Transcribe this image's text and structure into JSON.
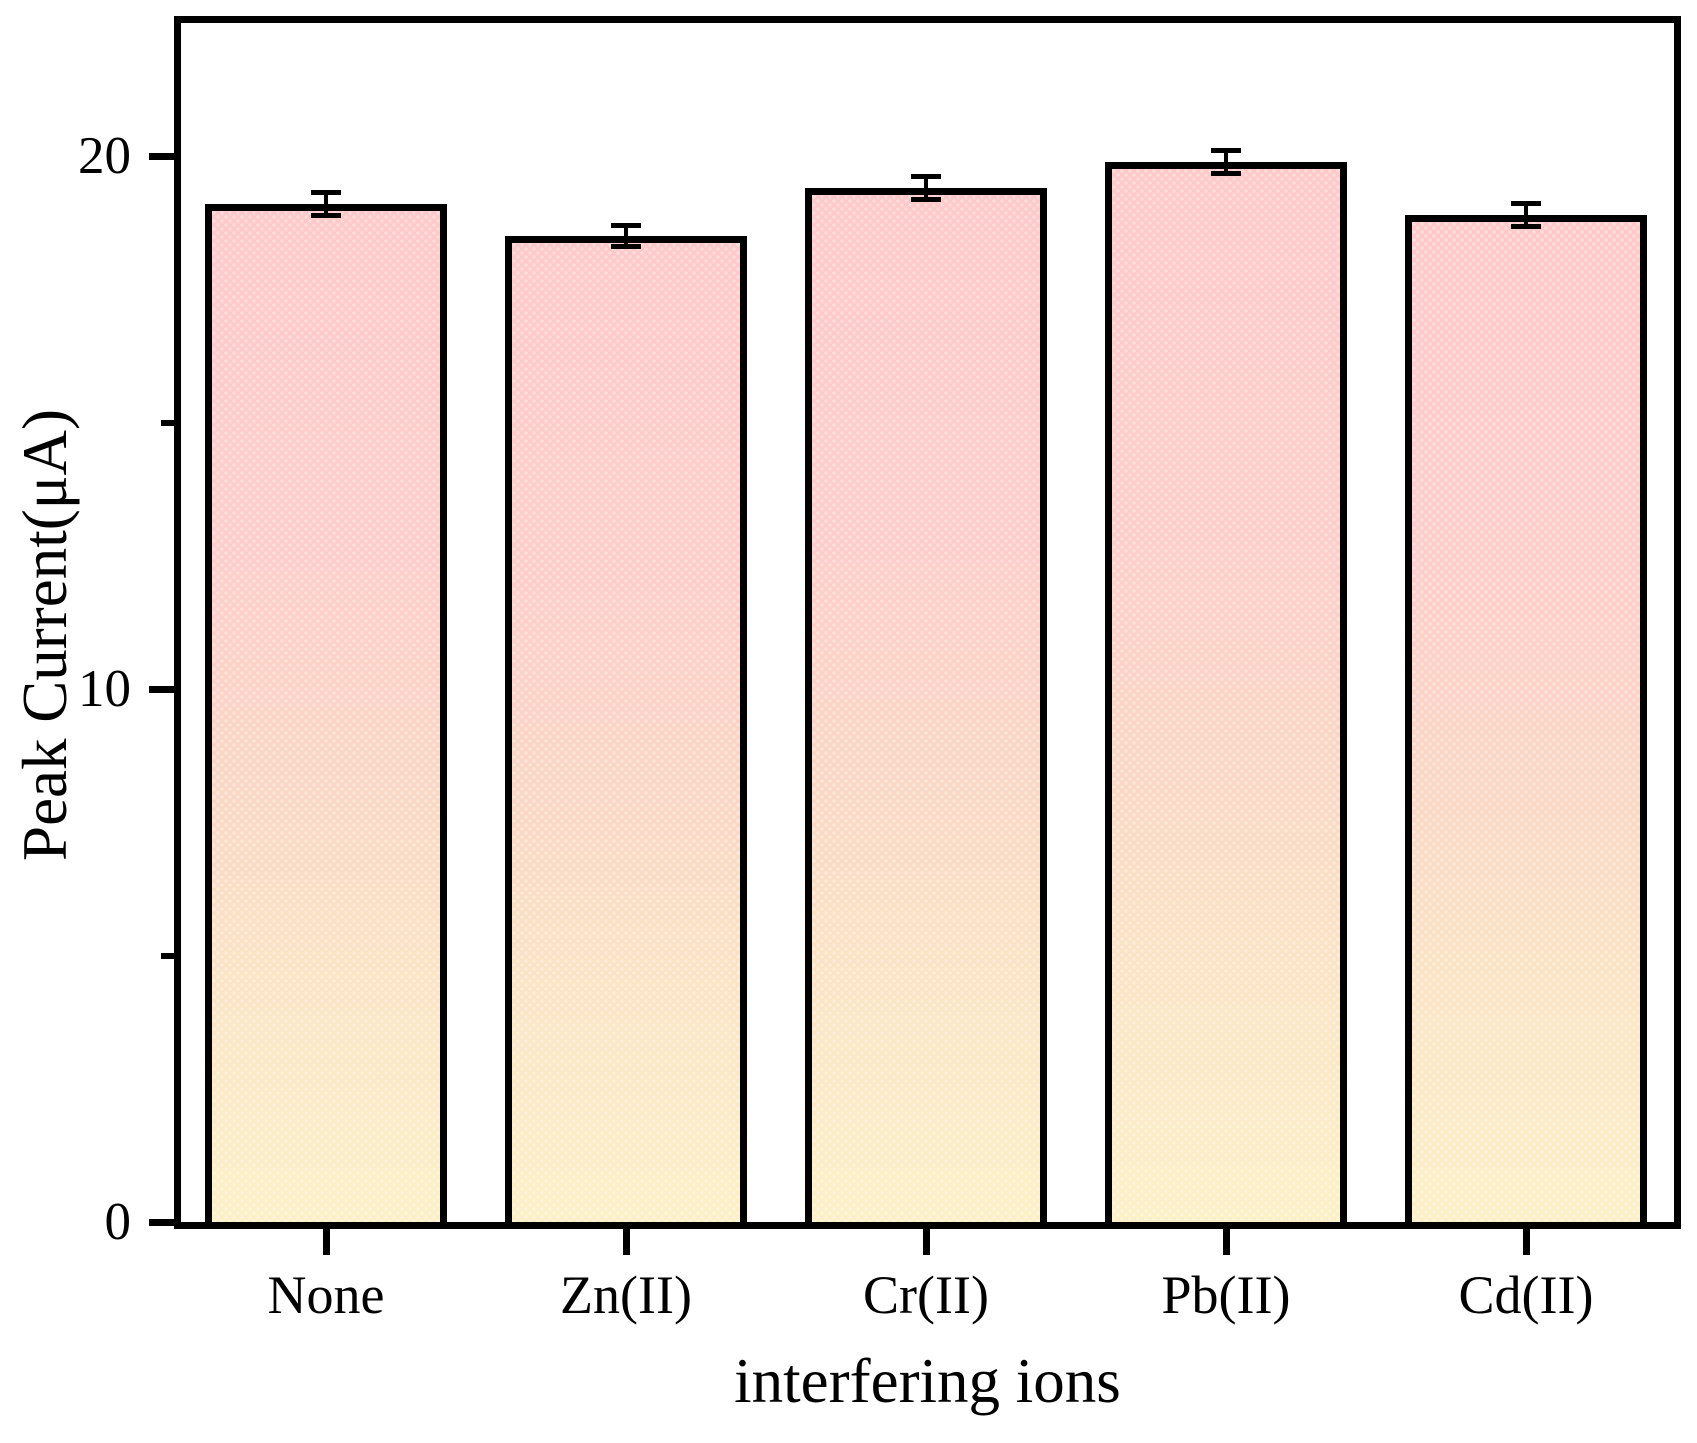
{
  "chart_data": {
    "type": "bar",
    "title": "",
    "xlabel": "interfering ions",
    "ylabel": "Peak Current(μA)",
    "categories": [
      "None",
      "Zn(II)",
      "Cr(II)",
      "Pb(II)",
      "Cd(II)"
    ],
    "values": [
      19.1,
      18.5,
      19.4,
      19.9,
      18.9
    ],
    "errors": [
      0.27,
      0.25,
      0.26,
      0.26,
      0.26
    ],
    "ylim": [
      0,
      22.5
    ],
    "yticks_major": [
      0,
      10,
      20
    ],
    "ytick_labels": [
      "0",
      "10",
      "20"
    ],
    "yticks_minor": [
      5,
      15
    ],
    "grid": false,
    "legend": "none",
    "bar_style": {
      "fill_top": "#FFC9C9",
      "fill_bottom": "#FCF0C6",
      "border_color": "#000000",
      "error_color": "#000000"
    },
    "axis_color": "#000000",
    "background": "#ffffff"
  }
}
